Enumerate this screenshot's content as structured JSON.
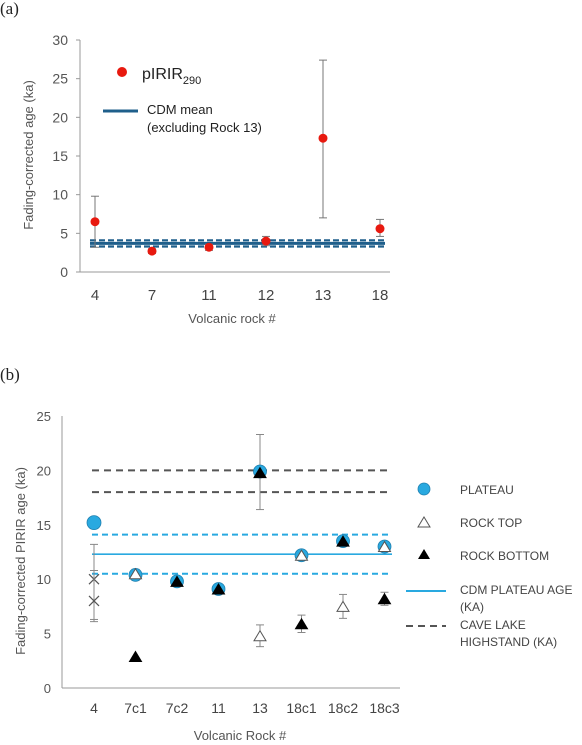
{
  "chart_data": [
    {
      "panel_label": "(a)",
      "type": "scatter",
      "xlabel": "Volcanic rock #",
      "ylabel": "Fading-corrected age (ka)",
      "categories": [
        "4",
        "7",
        "11",
        "12",
        "13",
        "18"
      ],
      "ylim": [
        0,
        30
      ],
      "yticks": [
        0,
        5,
        10,
        15,
        20,
        25,
        30
      ],
      "grid": false,
      "legend_position": "top-left",
      "series": [
        {
          "name": "pIRIR",
          "name_sub": "290",
          "color": "#e8190f",
          "marker": "circle",
          "values": [
            6.5,
            2.7,
            3.2,
            4.0,
            17.3,
            5.6
          ],
          "err_low": [
            3.2,
            2.4,
            2.8,
            3.4,
            7.0,
            4.6
          ],
          "err_high": [
            9.8,
            3.0,
            3.6,
            4.6,
            27.4,
            6.8
          ]
        }
      ],
      "lines": [
        {
          "name": "CDM mean",
          "name_line2": "(excluding Rock 13)",
          "color": "#1f5f8b",
          "value": 3.7,
          "band": [
            3.3,
            4.1
          ]
        }
      ]
    },
    {
      "panel_label": "(b)",
      "type": "scatter",
      "xlabel": "Volcanic Rock #",
      "ylabel": "Fading-corrected PIRIR age (ka)",
      "categories": [
        "4",
        "7c1",
        "7c2",
        "11",
        "13",
        "18c1",
        "18c2",
        "18c3"
      ],
      "ylim": [
        0,
        25
      ],
      "yticks": [
        0,
        5,
        10,
        15,
        20,
        25
      ],
      "grid": false,
      "legend_position": "right",
      "series": [
        {
          "name": "PLATEAU",
          "marker": "circle",
          "color": "#29a9e0",
          "values": [
            15.2,
            10.4,
            9.8,
            9.1,
            19.9,
            12.2,
            13.5,
            13.0
          ],
          "err_low": [
            null,
            9.9,
            9.5,
            8.8,
            16.4,
            11.8,
            13.1,
            12.6
          ],
          "err_high": [
            null,
            10.9,
            10.1,
            9.4,
            23.3,
            12.6,
            13.9,
            13.4
          ]
        },
        {
          "name": "ROCK TOP",
          "marker": "triangle-open",
          "color": "#555555",
          "values": [
            null,
            10.5,
            null,
            null,
            4.8,
            12.2,
            7.5,
            13.0
          ],
          "err_low": [
            null,
            10.1,
            null,
            null,
            3.8,
            11.9,
            6.4,
            12.7
          ],
          "err_high": [
            null,
            10.9,
            null,
            null,
            5.8,
            12.5,
            8.6,
            13.3
          ]
        },
        {
          "name": "ROCK BOTTOM",
          "marker": "triangle-filled",
          "color": "#000000",
          "values": [
            null,
            2.9,
            9.8,
            9.1,
            19.8,
            5.9,
            13.5,
            8.2
          ],
          "err_low": [
            null,
            null,
            null,
            null,
            null,
            5.1,
            null,
            7.6
          ],
          "err_high": [
            null,
            null,
            null,
            null,
            null,
            6.7,
            null,
            8.8
          ]
        },
        {
          "name": "",
          "marker": "cross",
          "color": "#555555",
          "values": [
            10.0,
            8.0
          ],
          "x_index": [
            0,
            0
          ],
          "err_low": [
            6.3,
            6.1
          ],
          "err_high": [
            13.2,
            10.8
          ]
        }
      ],
      "lines": [
        {
          "name": "CDM PLATEAU AGE",
          "name_line2": "(KA)",
          "color": "#29a9e0",
          "style": "solid",
          "value": 12.3,
          "band": [
            10.5,
            14.1
          ]
        },
        {
          "name": "CAVE LAKE",
          "name_line2": "HIGHSTAND (KA)",
          "color": "#555555",
          "style": "dashed",
          "values": [
            18.0,
            20.0
          ]
        }
      ]
    }
  ]
}
